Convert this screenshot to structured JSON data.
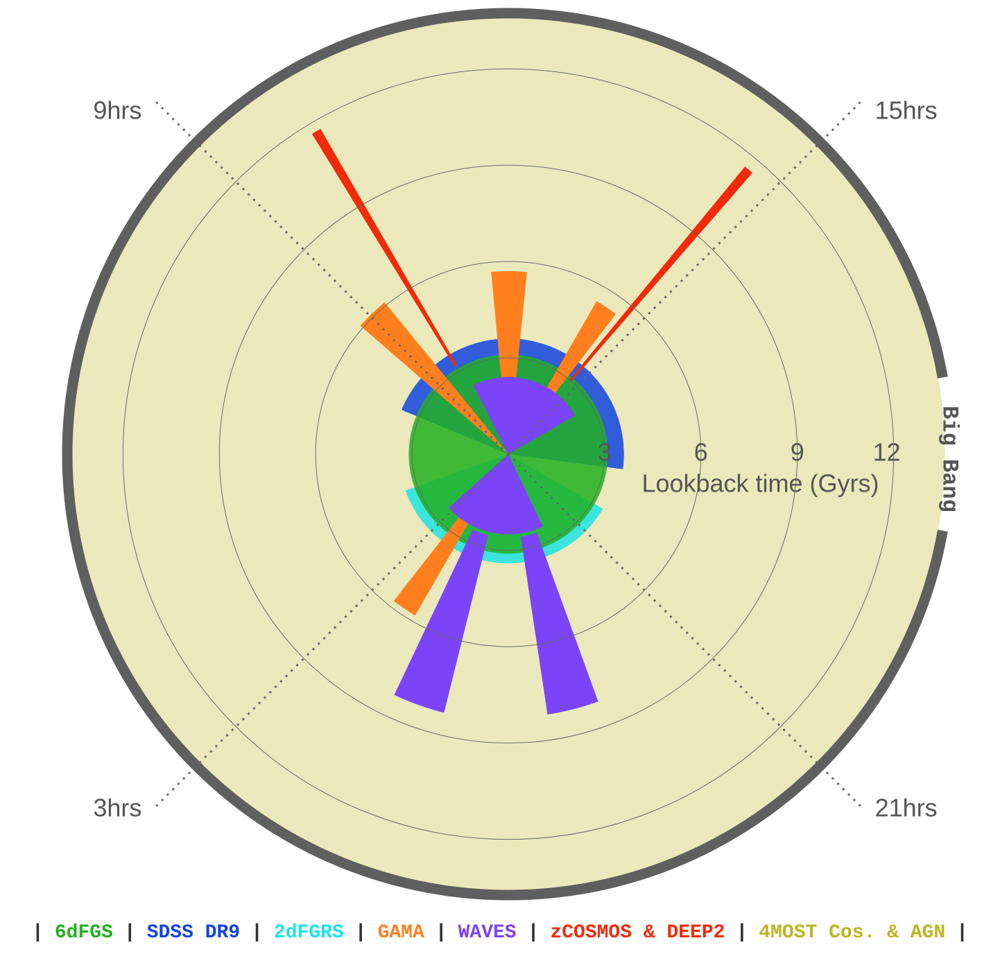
{
  "chart_data": {
    "type": "polar-cone",
    "r_label": "Lookback time (Gyrs)",
    "edge_label": "Big Bang",
    "rlim": [
      0,
      13.8
    ],
    "rticks": [
      3,
      6,
      9,
      12
    ],
    "ra_ticks": [
      {
        "value": 3,
        "label": "3hrs"
      },
      {
        "value": 9,
        "label": "9hrs"
      },
      {
        "value": 15,
        "label": "15hrs"
      },
      {
        "value": 21,
        "label": "21hrs"
      }
    ],
    "legend_separator": "|",
    "series": [
      {
        "name": "4MOST Cos. & AGN",
        "color": "#bdb521",
        "legend_order": 6,
        "wedges": [
          {
            "ra": [
              0,
              24
            ],
            "t": [
              0,
              13.6
            ]
          }
        ]
      },
      {
        "name": "2dFGRS",
        "color": "#1fe3e3",
        "legend_order": 2,
        "wedges": [
          {
            "ra": [
              20,
              4.7
            ],
            "t": [
              0,
              3.4
            ]
          }
        ]
      },
      {
        "name": "SDSS DR9",
        "color": "#1144e0",
        "legend_order": 1,
        "wedges": [
          {
            "ra": [
              7.5,
              18.5
            ],
            "t": [
              0,
              3.6
            ]
          }
        ]
      },
      {
        "name": "6dFGS",
        "color": "#22b022",
        "legend_order": 0,
        "wedges": [
          {
            "ra": [
              0,
              24
            ],
            "t": [
              0,
              3.1
            ]
          }
        ]
      },
      {
        "name": "GAMA",
        "color": "#ff7f1f",
        "legend_order": 3,
        "wedges": [
          {
            "ra": [
              11.64,
              12.39
            ],
            "t": [
              0,
              5.7
            ]
          },
          {
            "ra": [
              8.73,
              9.39
            ],
            "t": [
              0,
              6.1
            ]
          },
          {
            "ra": [
              14.0,
              14.5
            ],
            "t": [
              0,
              5.5
            ]
          },
          {
            "ra": [
              2.0,
              2.53
            ],
            "t": [
              0,
              5.8
            ]
          }
        ]
      },
      {
        "name": "zCOSMOS & DEEP2",
        "color": "#f02a0a",
        "legend_order": 5,
        "wedges": [
          {
            "ra": [
              9.9,
              10.0
            ],
            "t": [
              3.2,
              11.7
            ]
          },
          {
            "ra": [
              14.63,
              14.73
            ],
            "t": [
              3.0,
              11.6
            ]
          }
        ]
      },
      {
        "name": "WAVES",
        "color": "#7b44f8",
        "legend_order": 4,
        "wedges": [
          {
            "ra": [
              10.2,
              16.0
            ],
            "t": [
              0,
              2.4
            ]
          },
          {
            "ra": [
              22.3,
              3.2
            ],
            "t": [
              0,
              2.5
            ]
          },
          {
            "ra": [
              0.93,
              1.69
            ],
            "t": [
              2.6,
              8.3
            ]
          },
          {
            "ra": [
              22.67,
              23.43
            ],
            "t": [
              2.6,
              8.2
            ]
          }
        ]
      }
    ]
  }
}
